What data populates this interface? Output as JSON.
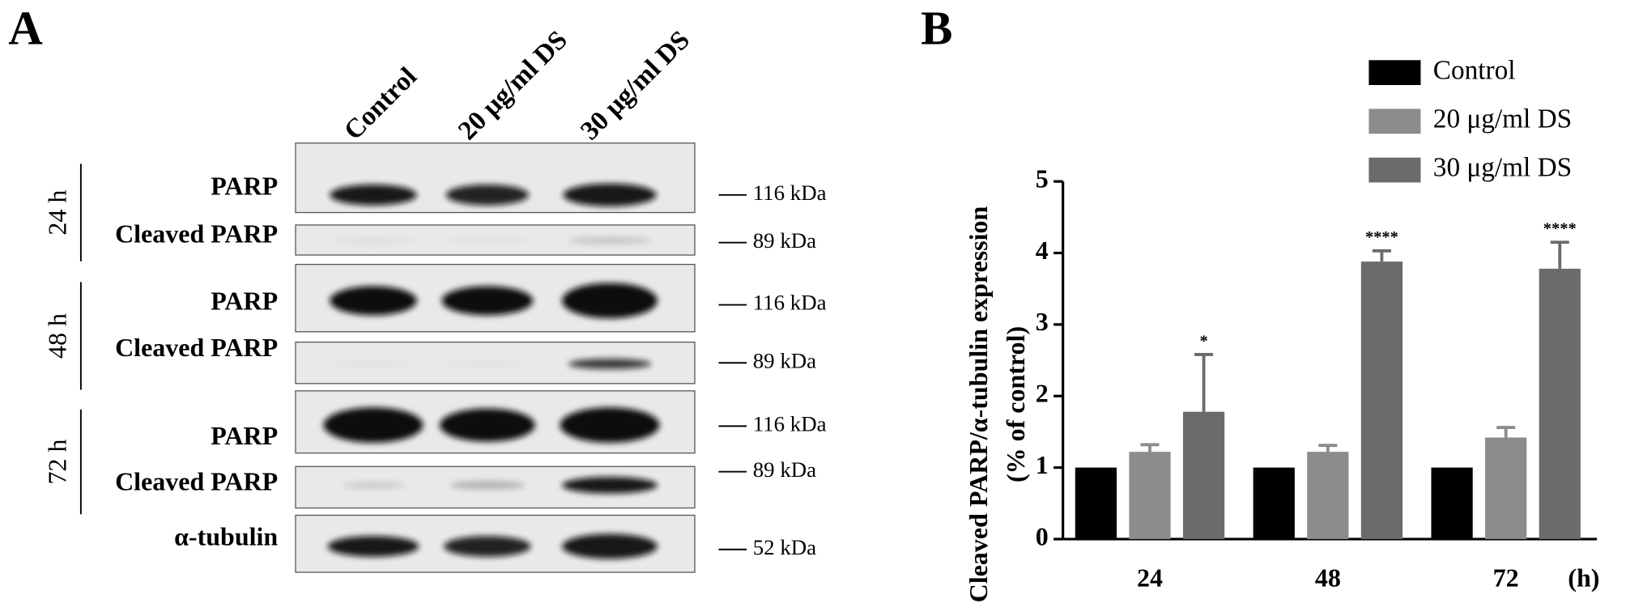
{
  "panel_a": {
    "label": "A",
    "lanes": [
      "Control",
      "20 μg/ml DS",
      "30 μg/ml DS"
    ],
    "times": [
      "24 h",
      "48 h",
      "72 h"
    ],
    "rows": [
      "PARP",
      "Cleaved PARP",
      "PARP",
      "Cleaved PARP",
      "PARP",
      "Cleaved PARP",
      "α-tubulin"
    ],
    "markers": [
      "116 kDa",
      "89 kDa",
      "116 kDa",
      "89 kDa",
      "116 kDa",
      "89 kDa",
      "52 kDa"
    ]
  },
  "chart_data": {
    "type": "bar",
    "panel_label": "B",
    "y_label": [
      "Cleaved PARP/α-tubulin expression",
      "(% of control)"
    ],
    "x_unit": "(h)",
    "categories": [
      "24",
      "48",
      "72"
    ],
    "series": [
      {
        "name": "Control",
        "color": "#000000",
        "values": [
          1,
          1,
          1
        ]
      },
      {
        "name": "20 μg/ml DS",
        "color": "#8c8c8c",
        "values": [
          1.22,
          1.22,
          1.42
        ],
        "errors": [
          0.1,
          0.09,
          0.14
        ]
      },
      {
        "name": "30 μg/ml DS",
        "color": "#6b6b6b",
        "values": [
          1.78,
          3.88,
          3.78
        ],
        "errors": [
          0.8,
          0.15,
          0.37
        ],
        "significance": [
          "*",
          "****",
          "****"
        ]
      }
    ],
    "ylim": [
      0,
      5
    ],
    "yticks": [
      0,
      1,
      2,
      3,
      4,
      5
    ]
  }
}
